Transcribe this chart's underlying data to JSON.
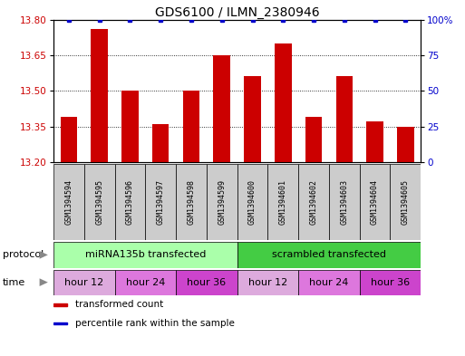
{
  "title": "GDS6100 / ILMN_2380946",
  "samples": [
    "GSM1394594",
    "GSM1394595",
    "GSM1394596",
    "GSM1394597",
    "GSM1394598",
    "GSM1394599",
    "GSM1394600",
    "GSM1394601",
    "GSM1394602",
    "GSM1394603",
    "GSM1394604",
    "GSM1394605"
  ],
  "bar_values": [
    13.39,
    13.76,
    13.5,
    13.36,
    13.5,
    13.65,
    13.56,
    13.7,
    13.39,
    13.56,
    13.37,
    13.35
  ],
  "percentile_values": [
    100,
    100,
    100,
    100,
    100,
    100,
    100,
    100,
    100,
    100,
    100,
    100
  ],
  "ylim_left": [
    13.2,
    13.8
  ],
  "ylim_right": [
    0,
    100
  ],
  "yticks_left": [
    13.2,
    13.35,
    13.5,
    13.65,
    13.8
  ],
  "yticks_right": [
    0,
    25,
    50,
    75,
    100
  ],
  "bar_color": "#cc0000",
  "dot_color": "#0000cc",
  "bar_width": 0.55,
  "protocol_groups": [
    {
      "label": "miRNA135b transfected",
      "start": 0,
      "end": 6,
      "color": "#aaffaa"
    },
    {
      "label": "scrambled transfected",
      "start": 6,
      "end": 12,
      "color": "#44cc44"
    }
  ],
  "time_groups": [
    {
      "label": "hour 12",
      "start": 0,
      "end": 2,
      "color": "#ddaadd"
    },
    {
      "label": "hour 24",
      "start": 2,
      "end": 4,
      "color": "#dd77dd"
    },
    {
      "label": "hour 36",
      "start": 4,
      "end": 6,
      "color": "#cc44cc"
    },
    {
      "label": "hour 12",
      "start": 6,
      "end": 8,
      "color": "#ddaadd"
    },
    {
      "label": "hour 24",
      "start": 8,
      "end": 10,
      "color": "#dd77dd"
    },
    {
      "label": "hour 36",
      "start": 10,
      "end": 12,
      "color": "#cc44cc"
    }
  ],
  "legend_items": [
    {
      "label": "transformed count",
      "color": "#cc0000"
    },
    {
      "label": "percentile rank within the sample",
      "color": "#0000cc"
    }
  ],
  "protocol_label": "protocol",
  "time_label": "time",
  "sample_box_color": "#cccccc",
  "background_color": "#ffffff",
  "grid_color": "#000000",
  "label_color_left": "#cc0000",
  "label_color_right": "#0000cc"
}
